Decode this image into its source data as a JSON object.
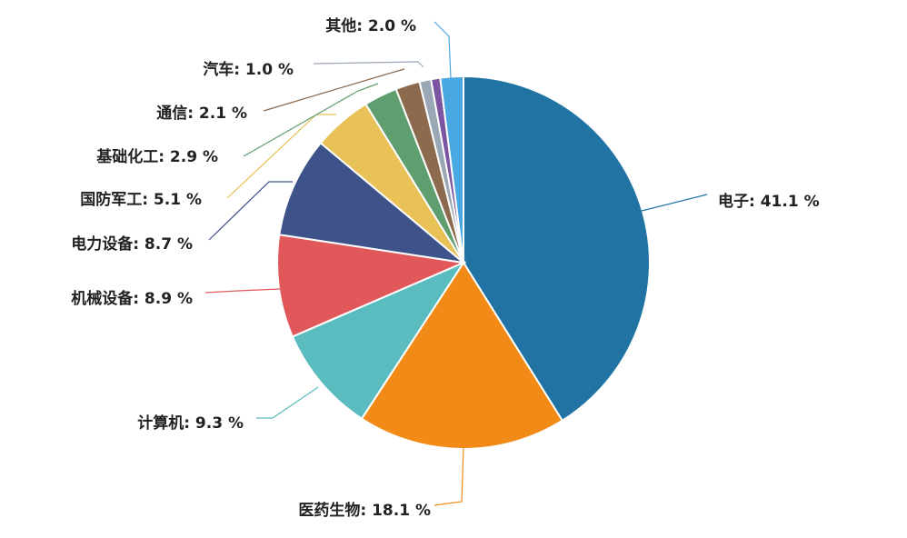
{
  "chart_data": {
    "type": "pie",
    "slices": [
      {
        "name": "电子",
        "value": 41.1,
        "label": "电子: 41.1 %",
        "color": "#2173a3"
      },
      {
        "name": "医药生物",
        "value": 18.1,
        "label": "医药生物: 18.1 %",
        "color": "#f28a18"
      },
      {
        "name": "计算机",
        "value": 9.3,
        "label": "计算机: 9.3 %",
        "color": "#5bbcbf"
      },
      {
        "name": "机械设备",
        "value": 8.9,
        "label": "机械设备: 8.9 %",
        "color": "#e1585b"
      },
      {
        "name": "电力设备",
        "value": 8.7,
        "label": "电力设备: 8.7 %",
        "color": "#3f538b"
      },
      {
        "name": "国防军工",
        "value": 5.1,
        "label": "国防军工: 5.1 %",
        "color": "#e8c257"
      },
      {
        "name": "基础化工",
        "value": 2.9,
        "label": "基础化工: 2.9 %",
        "color": "#5f9e6e"
      },
      {
        "name": "通信",
        "value": 2.1,
        "label": "通信: 2.1 %",
        "color": "#8c6a4e"
      },
      {
        "name": "汽车",
        "value": 1.0,
        "label": "汽车: 1.0 %",
        "color": "#9aa7b4"
      },
      {
        "name": "",
        "value": 0.8,
        "label": "",
        "color": "#7b55a1"
      },
      {
        "name": "其他",
        "value": 2.0,
        "label": "其他: 2.0 %",
        "color": "#4aa8e0"
      }
    ]
  }
}
